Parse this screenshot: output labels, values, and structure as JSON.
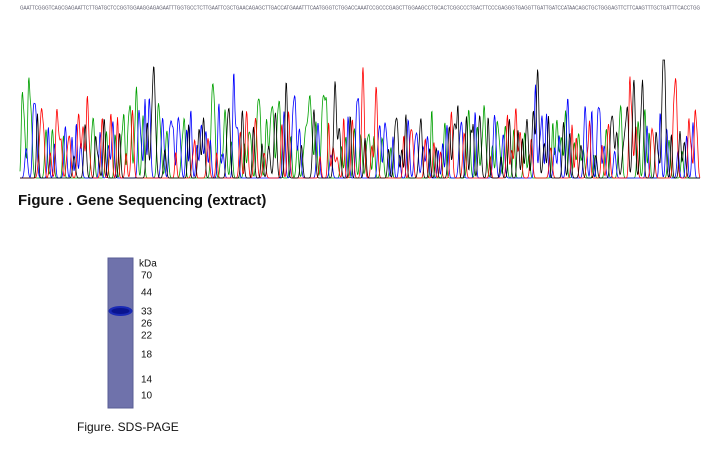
{
  "sequence": {
    "text": "GAATTCGGGTCAGCGAGAATTCTTGATGCTCCGGTGGAAGGAGAGAATTTGGTGCCTCTTGAATTCGCTGAACAGAGCTTGACCATGAAATTTCAATGGGTCTGGACCAAATCCGCCCGAGCTTGGAAGCCTGCACTCGGCCCTGACTTCCCGAGGGTGAGGTTGATTGATCCATAACAGCTGCTGGGAGTTCTTCAAGTTTGCTGATTTCACCTGG"
  },
  "figures": [
    {
      "caption": "Figure . Gene Sequencing (extract)"
    },
    {
      "caption": "Figure. SDS-PAGE",
      "unit": "kDa",
      "markers": [
        70,
        44,
        33,
        26,
        22,
        18,
        14,
        10
      ]
    }
  ]
}
